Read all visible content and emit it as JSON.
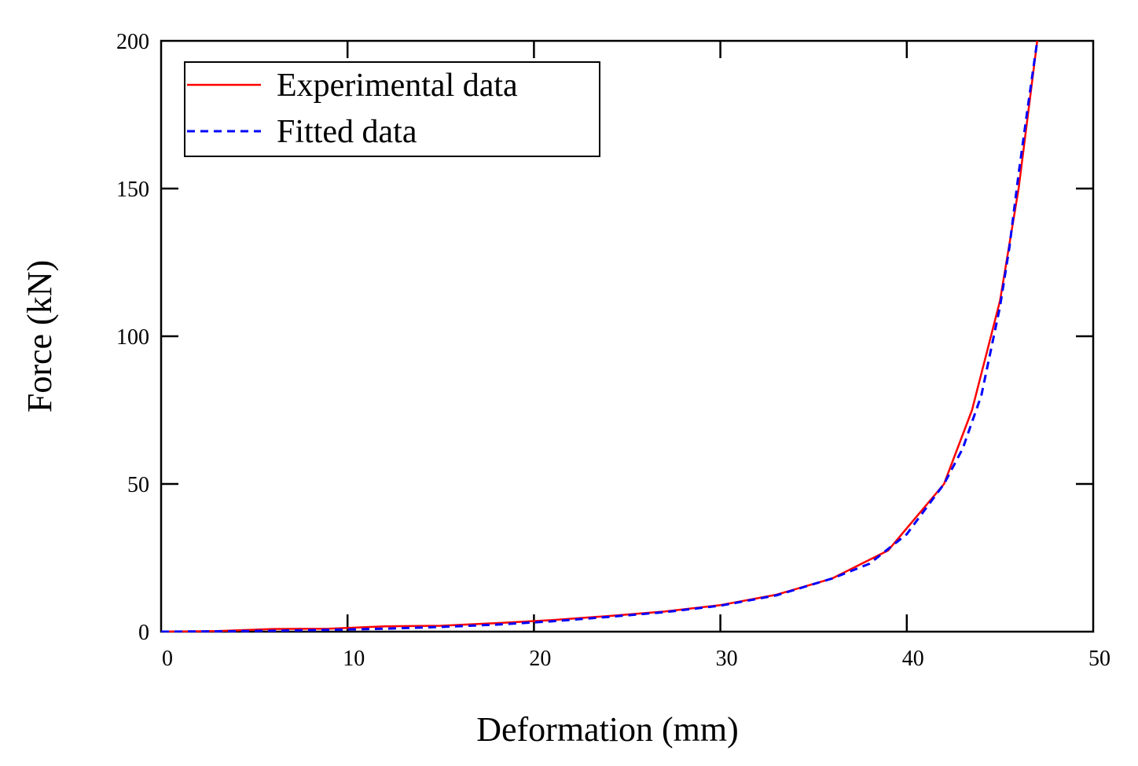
{
  "chart_data": {
    "type": "line",
    "title": "",
    "xlabel": "Deformation (mm)",
    "ylabel": "Force (kN)",
    "xlim": [
      0,
      50
    ],
    "ylim": [
      0,
      200
    ],
    "xticks": [
      0,
      10,
      20,
      30,
      40,
      50
    ],
    "yticks": [
      0,
      50,
      100,
      150,
      200
    ],
    "xtick_labels": [
      "0",
      "10",
      "20",
      "30",
      "40",
      "50"
    ],
    "ytick_labels": [
      "0",
      "50",
      "100",
      "150",
      "200"
    ],
    "grid": false,
    "legend_position": "top-left",
    "series": [
      {
        "name": "Experimental data",
        "color": "#ff0000",
        "style": "solid",
        "x": [
          0,
          3,
          6,
          9,
          12,
          15,
          18,
          21,
          24,
          27,
          30,
          33,
          36,
          39,
          42,
          43.5,
          45,
          46,
          47
        ],
        "y": [
          0,
          0.2,
          0.9,
          1.0,
          1.8,
          2.0,
          2.9,
          3.9,
          5.3,
          6.8,
          9.0,
          12.5,
          18.0,
          27.5,
          50.0,
          75.0,
          112.0,
          150.0,
          200.0
        ]
      },
      {
        "name": "Fitted data",
        "color": "#0000ff",
        "style": "dashed",
        "x": [
          0,
          3,
          6,
          9,
          12,
          15,
          18,
          21,
          24,
          27,
          30,
          33,
          36,
          38,
          40,
          42,
          43,
          44,
          45,
          45.5,
          46,
          46.5,
          47
        ],
        "y": [
          0,
          0.1,
          0.3,
          0.6,
          1.0,
          1.6,
          2.4,
          3.5,
          5.0,
          6.6,
          8.8,
          12.3,
          18.0,
          23.0,
          33.0,
          50.0,
          62.0,
          80.0,
          110.0,
          130.0,
          155.0,
          178.0,
          200.0
        ]
      }
    ]
  }
}
